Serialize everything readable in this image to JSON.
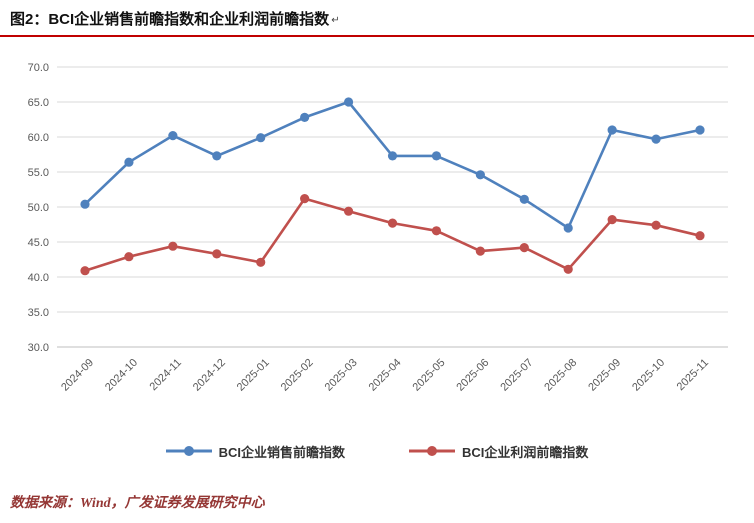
{
  "header": {
    "title_prefix": "图2：",
    "title_main": "BCI企业销售前瞻指数和企业利润前瞻指数",
    "mark": "↵"
  },
  "colors": {
    "rule_red": "#c00000",
    "footer_red": "#953735",
    "series_blue": "#4f81bd",
    "series_red": "#c0504d"
  },
  "chart_data": {
    "type": "line",
    "categories": [
      "2024-09",
      "2024-10",
      "2024-11",
      "2024-12",
      "2025-01",
      "2025-02",
      "2025-03",
      "2025-04",
      "2025-05",
      "2025-06",
      "2025-07",
      "2025-08",
      "2025-09",
      "2025-10",
      "2025-11"
    ],
    "series": [
      {
        "name": "BCI企业销售前瞻指数",
        "color": "#4f81bd",
        "values": [
          50.4,
          56.4,
          60.2,
          57.3,
          59.9,
          62.8,
          65.0,
          57.3,
          57.3,
          54.6,
          51.1,
          47.0,
          61.0,
          59.7,
          61.0
        ]
      },
      {
        "name": "BCI企业利润前瞻指数",
        "color": "#c0504d",
        "values": [
          40.9,
          42.9,
          44.4,
          43.3,
          42.1,
          51.2,
          49.4,
          47.7,
          46.6,
          43.7,
          44.2,
          41.1,
          48.2,
          47.4,
          45.9
        ]
      }
    ],
    "title": "BCI企业销售前瞻指数和企业利润前瞻指数",
    "xlabel": "",
    "ylabel": "",
    "ylim": [
      30.0,
      70.0
    ],
    "ytick_step": 5,
    "grid": true,
    "legend_position": "bottom"
  },
  "footer": {
    "source": "数据来源：Wind，广发证券发展研究中心"
  }
}
